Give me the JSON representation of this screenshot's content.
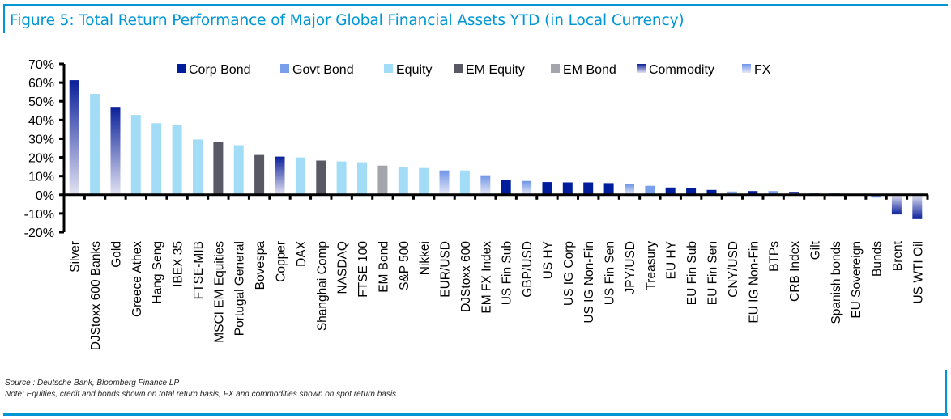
{
  "title": "Figure 5: Total Return Performance of Major Global Financial Assets YTD (in Local Currency)",
  "footer": {
    "source": "Source : Deutsche Bank, Bloomberg Finance LP",
    "note": "Note: Equities, credit and bonds shown on total return basis, FX and commodities shown on spot return basis"
  },
  "colors": {
    "frame": "#0096d6",
    "Corp Bond": "#001e9c",
    "Govt Bond": "#7a9fea",
    "Equity": "#a3dcf7",
    "EM Equity": "#595966",
    "EM Bond": "#a4a4ad",
    "Commodity": [
      "#0a1f9a",
      "#e3e3f2"
    ],
    "FX": [
      "#6f95e8",
      "#e6e8f5"
    ]
  },
  "chart_data": {
    "type": "bar",
    "title": "Total Return Performance of Major Global Financial Assets YTD (in Local Currency)",
    "xlabel": "",
    "ylabel": "",
    "ylim": [
      -20,
      70
    ],
    "yticks": [
      -20,
      -10,
      0,
      10,
      20,
      30,
      40,
      50,
      60,
      70
    ],
    "ytick_format": "{v}%",
    "grid": false,
    "legend_position": "top",
    "legend": [
      "Corp Bond",
      "Govt Bond",
      "Equity",
      "EM Equity",
      "EM Bond",
      "Commodity",
      "FX"
    ],
    "categories": [
      "Silver",
      "DJStoxx 600 Banks",
      "Gold",
      "Greece Athex",
      "Hang Seng",
      "IBEX 35",
      "FTSE-MIB",
      "MSCI EM Equities",
      "Portugal General",
      "Bovespa",
      "Copper",
      "DAX",
      "Shanghai Comp",
      "NASDAQ",
      "FTSE 100",
      "EM Bond",
      "S&P 500",
      "Nikkei",
      "EUR/USD",
      "DJStoxx 600",
      "EM FX Index",
      "US Fin Sub",
      "GBP/USD",
      "US HY",
      "US IG Corp",
      "US IG Non-Fin",
      "US Fin Sen",
      "JPY/USD",
      "Treasury",
      "EU HY",
      "EU Fin Sub",
      "EU Fin Sen",
      "CNY/USD",
      "EU IG Non-Fin",
      "BTPs",
      "CRB Index",
      "Gilt",
      "Spanish bonds",
      "EU Sovereign",
      "Bunds",
      "Brent",
      "US WTI Oil"
    ],
    "asset_class": [
      "Commodity",
      "Equity",
      "Commodity",
      "Equity",
      "Equity",
      "Equity",
      "Equity",
      "EM Equity",
      "Equity",
      "EM Equity",
      "Commodity",
      "Equity",
      "EM Equity",
      "Equity",
      "Equity",
      "EM Bond",
      "Equity",
      "Equity",
      "FX",
      "Equity",
      "FX",
      "Corp Bond",
      "FX",
      "Corp Bond",
      "Corp Bond",
      "Corp Bond",
      "Corp Bond",
      "FX",
      "Govt Bond",
      "Corp Bond",
      "Corp Bond",
      "Corp Bond",
      "FX",
      "Corp Bond",
      "Govt Bond",
      "Commodity",
      "Govt Bond",
      "Govt Bond",
      "Govt Bond",
      "Govt Bond",
      "Commodity",
      "Commodity"
    ],
    "values": [
      61.3,
      54.0,
      47.0,
      42.7,
      38.3,
      37.4,
      29.6,
      28.3,
      26.5,
      21.3,
      20.4,
      20.0,
      18.3,
      17.8,
      17.4,
      15.6,
      14.8,
      14.3,
      13.0,
      13.0,
      10.4,
      7.8,
      7.4,
      6.8,
      6.6,
      6.6,
      6.2,
      5.7,
      4.8,
      3.9,
      3.5,
      2.6,
      1.7,
      2.0,
      2.0,
      1.6,
      1.2,
      0.8,
      0.1,
      -1.5,
      -10.5,
      -13.0
    ]
  }
}
